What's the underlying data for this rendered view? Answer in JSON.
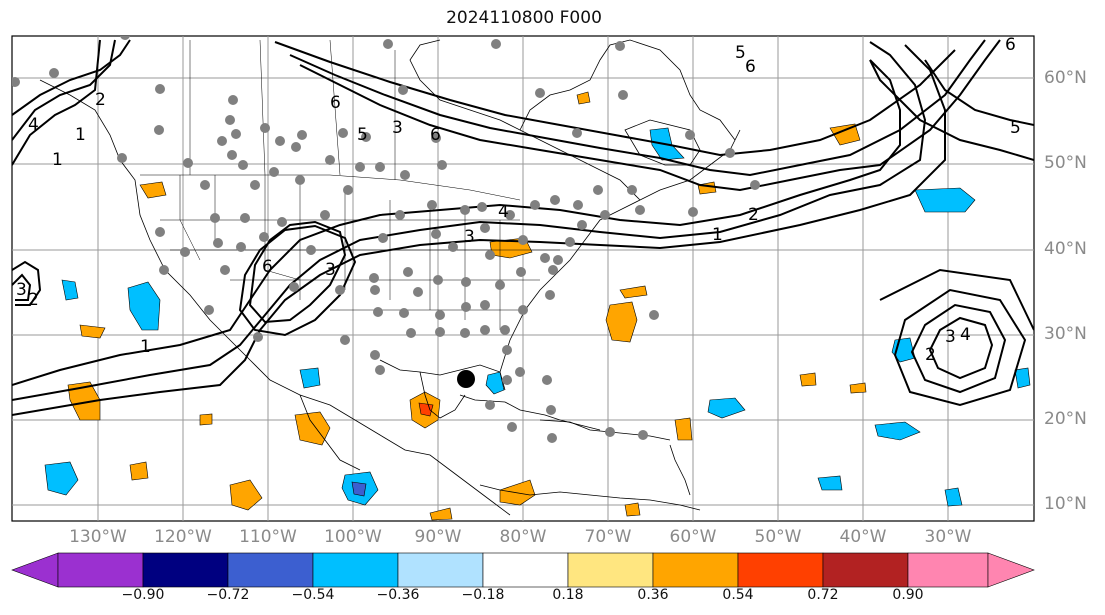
{
  "title": "2024110800 F000",
  "lat_labels": [
    "60°N",
    "50°N",
    "40°N",
    "30°N",
    "20°N",
    "10°N"
  ],
  "lon_labels": [
    "130°W",
    "120°W",
    "110°W",
    "100°W",
    "90°W",
    "80°W",
    "70°W",
    "60°W",
    "50°W",
    "40°W",
    "30°W"
  ],
  "colorbar": {
    "ticks": [
      "−0.90",
      "−0.72",
      "−0.54",
      "−0.36",
      "−0.18",
      "0.18",
      "0.36",
      "0.54",
      "0.72",
      "0.90"
    ],
    "colors": [
      "#9b30d0",
      "#000080",
      "#3c5fd0",
      "#00bfff",
      "#b0e2ff",
      "#ffffff",
      "#ffe680",
      "#ffa500",
      "#ff4000",
      "#b22222",
      "#ff85b0",
      "#ff85b0"
    ]
  },
  "contour_labels": [
    "5",
    "6",
    "6",
    "1",
    "2",
    "6",
    "4",
    "3",
    "6",
    "5",
    "3",
    "1",
    "4",
    "2",
    "1",
    "1",
    "2",
    "3",
    "4",
    "2",
    "3",
    "6",
    "5",
    "3"
  ],
  "storm_marker": "storm-center"
}
